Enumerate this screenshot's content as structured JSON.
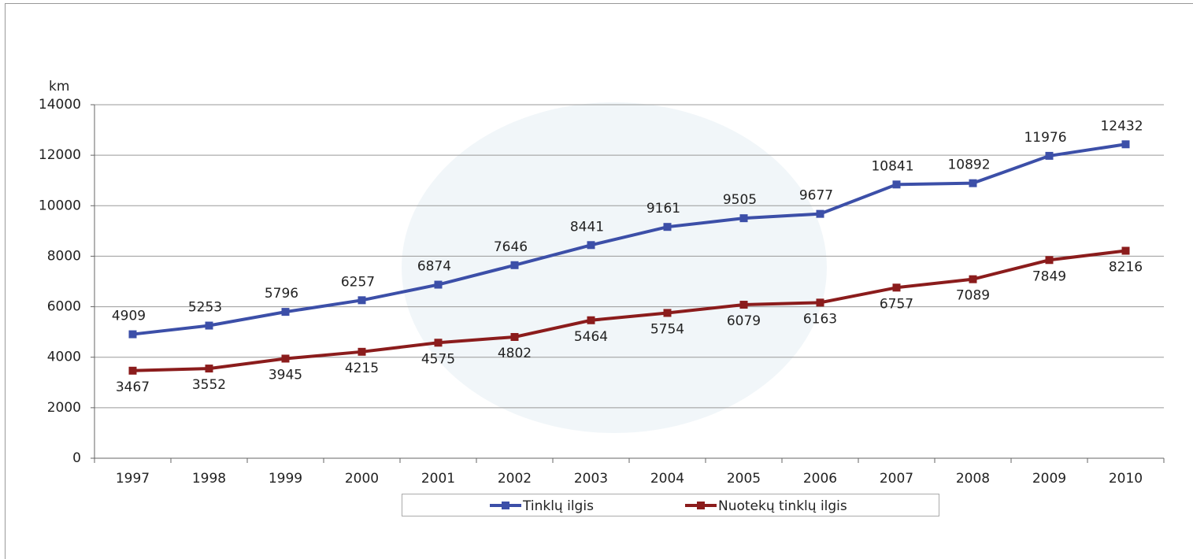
{
  "chart_data": {
    "type": "line",
    "y_label": "km",
    "categories": [
      "1997",
      "1998",
      "1999",
      "2000",
      "2001",
      "2002",
      "2003",
      "2004",
      "2005",
      "2006",
      "2007",
      "2008",
      "2009",
      "2010"
    ],
    "series": [
      {
        "name": "Tinklų ilgis",
        "color": "#3c4fa8",
        "values": [
          4909,
          5253,
          5796,
          6257,
          6874,
          7646,
          8441,
          9161,
          9505,
          9677,
          10841,
          10892,
          11976,
          12432
        ]
      },
      {
        "name": "Nuotekų tinklų ilgis",
        "color": "#8b1c1c",
        "values": [
          3467,
          3552,
          3945,
          4215,
          4575,
          4802,
          5464,
          5754,
          6079,
          6163,
          6757,
          7089,
          7849,
          8216
        ]
      }
    ],
    "ylim": [
      0,
      14000
    ],
    "yticks": [
      0,
      2000,
      4000,
      6000,
      8000,
      10000,
      12000,
      14000
    ],
    "grid": true,
    "legend": "bottom"
  }
}
